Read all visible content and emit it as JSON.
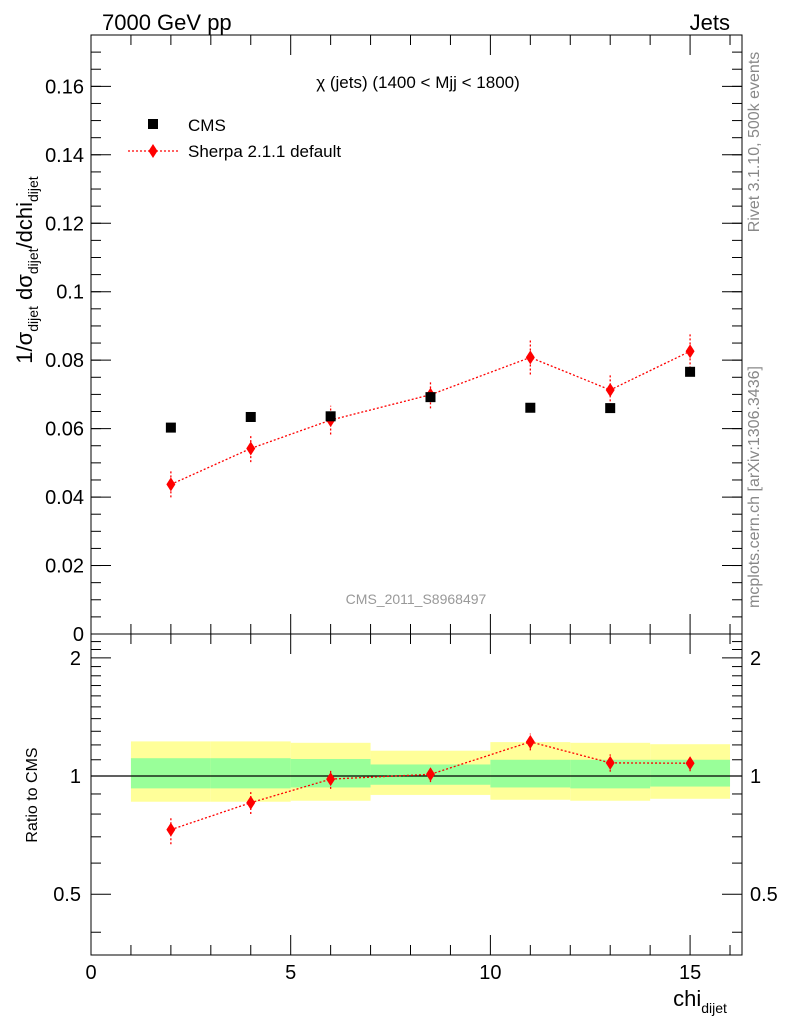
{
  "header": {
    "left": "7000 GeV pp",
    "right": "Jets"
  },
  "side_labels": {
    "rivet": "Rivet 3.1.10,  500k events",
    "mcplots": "mcplots.cern.ch [arXiv:1306.3436]"
  },
  "chart_data": [
    {
      "type": "scatter",
      "title": "χ (jets) (1400 < Mjj < 1800)",
      "watermark": "CMS_2011_S8968497",
      "ylabel_parts": {
        "a": "1/σ",
        "a_sub": "dijet",
        "b": " dσ",
        "b_sub": "dijet",
        "c": "/dchi",
        "c_sub": "dijet"
      },
      "xlabel": "chi",
      "xlabel_sub": "dijet",
      "xlim": [
        0,
        16.3
      ],
      "ylim": [
        0,
        0.175
      ],
      "y_ticks": [
        "0",
        "0.02",
        "0.04",
        "0.06",
        "0.08",
        "0.1",
        "0.12",
        "0.14",
        "0.16"
      ],
      "x_ticks": [
        "0",
        "5",
        "10",
        "15"
      ],
      "legend": {
        "position": "top-left"
      },
      "series": [
        {
          "name": "CMS",
          "marker": "square",
          "color": "#000000",
          "x": [
            2,
            4,
            6,
            8.5,
            11,
            13,
            15
          ],
          "y": [
            0.0603,
            0.0634,
            0.0636,
            0.0692,
            0.0661,
            0.066,
            0.0766
          ]
        },
        {
          "name": "Sherpa 2.1.1 default",
          "marker": "diamond",
          "line": "dotted",
          "color": "#ff0000",
          "x": [
            2,
            4,
            6,
            8.5,
            11,
            13,
            15
          ],
          "y": [
            0.0437,
            0.0542,
            0.0625,
            0.0699,
            0.0808,
            0.0713,
            0.0826
          ],
          "err": [
            0.0038,
            0.004,
            0.0042,
            0.004,
            0.005,
            0.0045,
            0.005
          ]
        }
      ]
    },
    {
      "type": "scatter",
      "title": "",
      "ylabel": "Ratio to CMS",
      "ylim": [
        0.35,
        2.3
      ],
      "y_scale": "log",
      "y_ticks": [
        0.5,
        1,
        2
      ],
      "y_tick_labels": [
        "0.5",
        "1",
        "2"
      ],
      "reference_line": 1,
      "bands": {
        "x_edges": [
          1,
          3,
          5,
          7,
          10,
          12,
          14,
          16
        ],
        "yellow_low": [
          0.86,
          0.86,
          0.865,
          0.895,
          0.87,
          0.865,
          0.875
        ],
        "yellow_high": [
          1.225,
          1.225,
          1.215,
          1.16,
          1.22,
          1.215,
          1.205
        ],
        "green_low": [
          0.93,
          0.93,
          0.935,
          0.95,
          0.935,
          0.93,
          0.94
        ],
        "green_high": [
          1.11,
          1.11,
          1.105,
          1.07,
          1.1,
          1.1,
          1.1
        ]
      },
      "series": [
        {
          "name": "Sherpa 2.1.1 default",
          "color": "#ff0000",
          "x": [
            2,
            4,
            6,
            8.5,
            11,
            13,
            15
          ],
          "y": [
            0.73,
            0.855,
            0.982,
            1.01,
            1.222,
            1.08,
            1.078
          ],
          "err": [
            0.06,
            0.055,
            0.055,
            0.045,
            0.06,
            0.055,
            0.05
          ]
        }
      ]
    }
  ]
}
